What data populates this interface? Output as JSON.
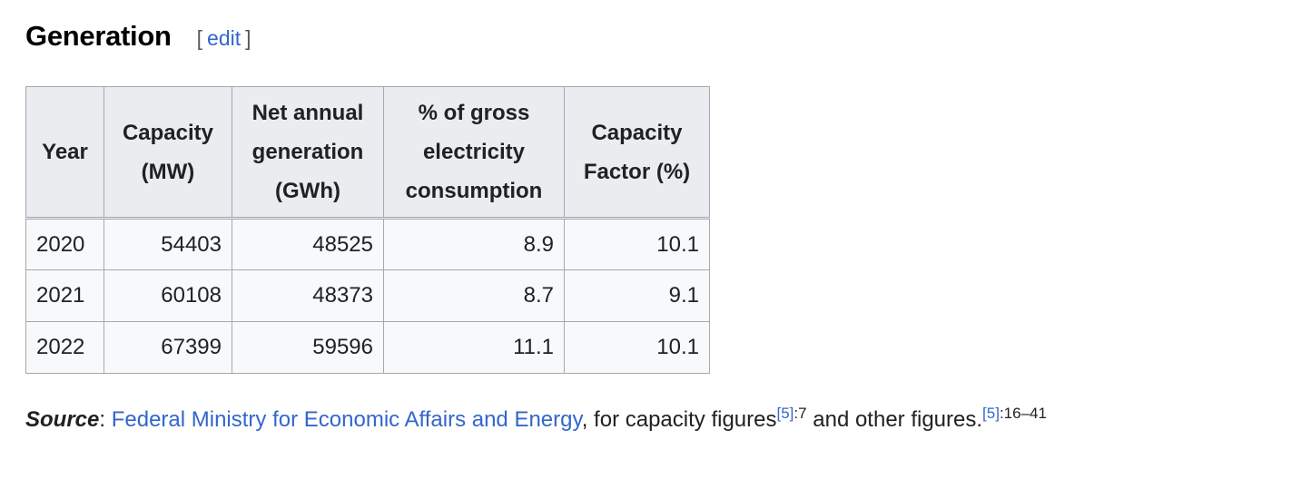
{
  "section": {
    "title": "Generation",
    "edit_open": "[",
    "edit_label": "edit",
    "edit_close": "]"
  },
  "table": {
    "headers": [
      [
        "Year"
      ],
      [
        "Capacity",
        "(MW)"
      ],
      [
        "Net annual",
        "generation",
        "(GWh)"
      ],
      [
        "% of gross",
        "electricity",
        "consumption"
      ],
      [
        "Capacity",
        "Factor (%)"
      ]
    ],
    "rows": [
      [
        "2020",
        "54403",
        "48525",
        "8.9",
        "10.1"
      ],
      [
        "2021",
        "60108",
        "48373",
        "8.7",
        "9.1"
      ],
      [
        "2022",
        "67399",
        "59596",
        "11.1",
        "10.1"
      ]
    ]
  },
  "source": {
    "label": "Source",
    "colon": ": ",
    "link": "Federal Ministry for Economic Affairs and Energy",
    "text1": ", for capacity figures",
    "ref1": "[5]",
    "page1": ":7",
    "text2": " and other figures.",
    "ref2": "[5]",
    "page2": ":16–41"
  }
}
